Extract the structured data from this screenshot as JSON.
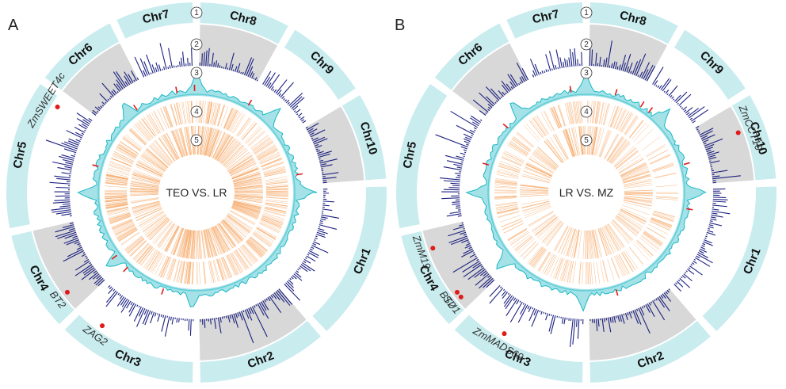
{
  "colors": {
    "outer_ring": "#c9ecef",
    "gray_band": "#d8d8d8",
    "bars": "#1b2080",
    "cyan": "#18b8c4",
    "cyan_fill": "#7fd6de",
    "orange": "#f5a35d",
    "marker": "#e01b1b"
  },
  "panels": [
    {
      "letter": "A",
      "center_label": "TEO VS. LR",
      "genes": [
        {
          "name": "ZmSWEET4c",
          "chr": "Chr5",
          "pos": 0.93
        },
        {
          "name": "BT2",
          "chr": "Chr4",
          "pos": 0.2
        },
        {
          "name": "ZAG2",
          "chr": "Chr3",
          "pos": 0.8
        }
      ]
    },
    {
      "letter": "B",
      "center_label": "LR VS. MZ",
      "genes": [
        {
          "name": "ZmCCT10",
          "chr": "Chr10",
          "pos": 0.35
        },
        {
          "name": "ZmM19",
          "chr": "Chr4",
          "pos": 0.78
        },
        {
          "name": "BT2",
          "chr": "Chr4",
          "pos": 0.2
        },
        {
          "name": "SU1",
          "chr": "Chr4",
          "pos": 0.13
        },
        {
          "name": "ZmMADS69",
          "chr": "Chr3",
          "pos": 0.68
        }
      ]
    }
  ],
  "chromosomes": [
    "Chr1",
    "Chr2",
    "Chr3",
    "Chr4",
    "Chr5",
    "Chr6",
    "Chr7",
    "Chr8",
    "Chr9",
    "Chr10"
  ],
  "track_numbers": [
    "1",
    "2",
    "3",
    "4",
    "5"
  ]
}
